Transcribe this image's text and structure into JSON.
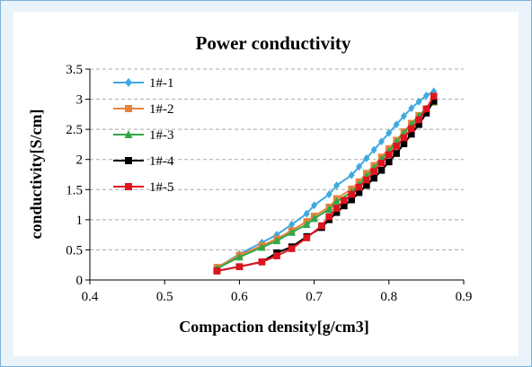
{
  "chart_data": {
    "type": "line",
    "title": "Power conductivity",
    "xlabel": "Compaction density[g/cm3]",
    "ylabel": "conductivity[S/cm]",
    "xlim": [
      0.4,
      0.9
    ],
    "ylim": [
      0,
      3.5
    ],
    "x_ticks": [
      "0.4",
      "0.5",
      "0.6",
      "0.7",
      "0.8",
      "0.9"
    ],
    "y_ticks": [
      "0",
      "0.5",
      "1",
      "1.5",
      "2",
      "2.5",
      "3",
      "3.5"
    ],
    "grid": "horizontal dashed",
    "legend_position": "top-left",
    "series": [
      {
        "name": "1#-1",
        "color": "#3fa9e0",
        "marker": "diamond",
        "x": [
          0.57,
          0.6,
          0.63,
          0.65,
          0.67,
          0.69,
          0.7,
          0.72,
          0.73,
          0.75,
          0.76,
          0.77,
          0.78,
          0.79,
          0.8,
          0.81,
          0.82,
          0.83,
          0.84,
          0.85,
          0.86
        ],
        "y": [
          0.2,
          0.43,
          0.62,
          0.75,
          0.92,
          1.1,
          1.24,
          1.42,
          1.57,
          1.74,
          1.88,
          2.02,
          2.16,
          2.3,
          2.44,
          2.58,
          2.72,
          2.85,
          2.96,
          3.06,
          3.13
        ]
      },
      {
        "name": "1#-2",
        "color": "#e8823a",
        "marker": "square",
        "x": [
          0.57,
          0.6,
          0.63,
          0.65,
          0.67,
          0.69,
          0.7,
          0.72,
          0.73,
          0.75,
          0.76,
          0.77,
          0.78,
          0.79,
          0.8,
          0.81,
          0.82,
          0.83,
          0.84,
          0.85,
          0.86
        ],
        "y": [
          0.21,
          0.41,
          0.57,
          0.68,
          0.82,
          0.97,
          1.06,
          1.21,
          1.35,
          1.51,
          1.63,
          1.77,
          1.9,
          2.04,
          2.18,
          2.32,
          2.46,
          2.6,
          2.73,
          2.84,
          2.95
        ]
      },
      {
        "name": "1#-3",
        "color": "#2ea84a",
        "marker": "triangle",
        "x": [
          0.57,
          0.6,
          0.63,
          0.65,
          0.67,
          0.69,
          0.7,
          0.72,
          0.73,
          0.75,
          0.76,
          0.77,
          0.78,
          0.79,
          0.8,
          0.81,
          0.82,
          0.83,
          0.84,
          0.85,
          0.86
        ],
        "y": [
          0.19,
          0.38,
          0.54,
          0.65,
          0.79,
          0.92,
          1.02,
          1.17,
          1.3,
          1.46,
          1.58,
          1.72,
          1.86,
          2.0,
          2.14,
          2.29,
          2.44,
          2.58,
          2.72,
          2.84,
          2.96
        ]
      },
      {
        "name": "1#-4",
        "color": "#000000",
        "marker": "square",
        "x": [
          0.57,
          0.6,
          0.63,
          0.65,
          0.67,
          0.69,
          0.71,
          0.72,
          0.73,
          0.74,
          0.75,
          0.76,
          0.77,
          0.78,
          0.79,
          0.8,
          0.81,
          0.82,
          0.83,
          0.84,
          0.85,
          0.86
        ],
        "y": [
          0.15,
          0.22,
          0.3,
          0.45,
          0.55,
          0.72,
          0.87,
          1.0,
          1.12,
          1.23,
          1.33,
          1.45,
          1.57,
          1.69,
          1.82,
          1.96,
          2.1,
          2.26,
          2.42,
          2.58,
          2.77,
          2.97
        ]
      },
      {
        "name": "1#-5",
        "color": "#e0141e",
        "marker": "square",
        "x": [
          0.57,
          0.6,
          0.63,
          0.65,
          0.67,
          0.69,
          0.71,
          0.72,
          0.73,
          0.74,
          0.75,
          0.76,
          0.77,
          0.78,
          0.79,
          0.8,
          0.81,
          0.82,
          0.83,
          0.84,
          0.85,
          0.86
        ],
        "y": [
          0.15,
          0.22,
          0.3,
          0.4,
          0.52,
          0.7,
          0.9,
          1.05,
          1.19,
          1.32,
          1.42,
          1.54,
          1.66,
          1.8,
          1.94,
          2.08,
          2.22,
          2.36,
          2.51,
          2.66,
          2.84,
          3.05
        ]
      }
    ]
  }
}
